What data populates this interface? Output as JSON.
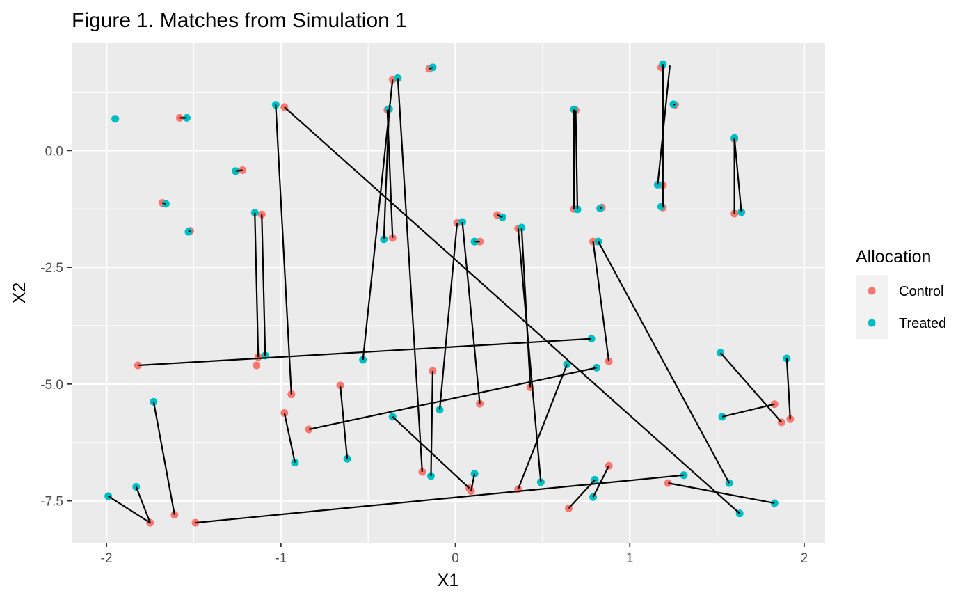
{
  "chart_data": {
    "type": "scatter",
    "title": "Figure 1. Matches from Simulation 1",
    "xlabel": "X1",
    "ylabel": "X2",
    "xlim": [
      -2.2,
      2.12
    ],
    "ylim": [
      -8.4,
      2.3
    ],
    "xticks": [
      -2,
      -1,
      0,
      1,
      2
    ],
    "xtick_labels": [
      "-2",
      "-1",
      "0",
      "1",
      "2"
    ],
    "yticks": [
      -7.5,
      -5.0,
      -2.5,
      0.0
    ],
    "ytick_labels": [
      "-7.5",
      "-5.0",
      "-2.5",
      "0.0"
    ],
    "grid": true,
    "legend": {
      "title": "Allocation",
      "position": "right",
      "entries": [
        {
          "label": "Control",
          "color": "#F8766D"
        },
        {
          "label": "Treated",
          "color": "#00BFC4"
        }
      ]
    },
    "series": [
      {
        "name": "Control",
        "color": "#F8766D",
        "points": [
          [
            -1.95,
            0.68
          ],
          [
            -1.58,
            0.7
          ],
          [
            -1.22,
            -0.42
          ],
          [
            -1.68,
            -1.12
          ],
          [
            -1.52,
            -1.72
          ],
          [
            -0.98,
            0.93
          ],
          [
            -1.11,
            -1.37
          ],
          [
            -1.13,
            -4.42
          ],
          [
            -1.14,
            -4.6
          ],
          [
            -1.82,
            -4.6
          ],
          [
            -0.94,
            -5.22
          ],
          [
            -0.98,
            -5.62
          ],
          [
            -0.84,
            -5.97
          ],
          [
            -0.66,
            -5.03
          ],
          [
            -1.75,
            -7.97
          ],
          [
            -1.61,
            -7.8
          ],
          [
            -1.49,
            -7.97
          ],
          [
            -0.39,
            0.87
          ],
          [
            -0.36,
            -1.87
          ],
          [
            -0.36,
            1.52
          ],
          [
            -0.15,
            1.75
          ],
          [
            -0.13,
            -4.72
          ],
          [
            -0.19,
            -6.88
          ],
          [
            0.01,
            -1.55
          ],
          [
            0.14,
            -5.42
          ],
          [
            0.14,
            -1.95
          ],
          [
            0.24,
            -1.38
          ],
          [
            0.08,
            -7.23
          ],
          [
            0.36,
            -1.67
          ],
          [
            0.43,
            -5.07
          ],
          [
            0.36,
            -7.25
          ],
          [
            0.09,
            -7.29
          ],
          [
            0.69,
            0.86
          ],
          [
            0.68,
            -1.25
          ],
          [
            0.84,
            -1.22
          ],
          [
            0.79,
            -1.95
          ],
          [
            0.88,
            -4.51
          ],
          [
            1.18,
            1.78
          ],
          [
            1.26,
            0.98
          ],
          [
            1.19,
            -0.74
          ],
          [
            1.19,
            -1.22
          ],
          [
            0.88,
            -6.75
          ],
          [
            0.65,
            -7.66
          ],
          [
            1.22,
            -7.12
          ],
          [
            1.6,
            0.25
          ],
          [
            1.6,
            -1.35
          ],
          [
            1.83,
            -5.43
          ],
          [
            1.87,
            -5.82
          ],
          [
            1.92,
            -5.75
          ]
        ]
      },
      {
        "name": "Treated",
        "color": "#00BFC4",
        "points": [
          [
            -1.95,
            0.68
          ],
          [
            -1.54,
            0.7
          ],
          [
            -1.26,
            -0.44
          ],
          [
            -1.66,
            -1.14
          ],
          [
            -1.53,
            -1.74
          ],
          [
            -1.03,
            0.98
          ],
          [
            -1.15,
            -1.33
          ],
          [
            -1.09,
            -4.39
          ],
          [
            -0.92,
            -6.68
          ],
          [
            -1.73,
            -5.38
          ],
          [
            -1.83,
            -7.2
          ],
          [
            -1.99,
            -7.4
          ],
          [
            -0.62,
            -6.6
          ],
          [
            -0.41,
            -1.9
          ],
          [
            -0.38,
            0.89
          ],
          [
            -0.33,
            1.55
          ],
          [
            -0.53,
            -4.48
          ],
          [
            -0.13,
            1.78
          ],
          [
            -0.36,
            -5.7
          ],
          [
            -0.14,
            -6.97
          ],
          [
            -0.09,
            -5.55
          ],
          [
            0.04,
            -1.53
          ],
          [
            0.11,
            -1.95
          ],
          [
            0.27,
            -1.43
          ],
          [
            0.38,
            -1.65
          ],
          [
            0.49,
            -7.1
          ],
          [
            0.11,
            -6.92
          ],
          [
            0.64,
            -4.58
          ],
          [
            0.68,
            0.88
          ],
          [
            0.7,
            -1.26
          ],
          [
            0.83,
            -1.24
          ],
          [
            0.82,
            -1.95
          ],
          [
            0.78,
            -4.03
          ],
          [
            0.81,
            -4.65
          ],
          [
            0.8,
            -7.05
          ],
          [
            0.79,
            -7.42
          ],
          [
            1.19,
            1.85
          ],
          [
            1.25,
            0.99
          ],
          [
            1.16,
            -0.73
          ],
          [
            1.18,
            -1.2
          ],
          [
            1.31,
            -6.95
          ],
          [
            1.6,
            0.27
          ],
          [
            1.64,
            -1.32
          ],
          [
            1.52,
            -4.33
          ],
          [
            1.53,
            -5.7
          ],
          [
            1.57,
            -7.12
          ],
          [
            1.9,
            -4.45
          ],
          [
            1.83,
            -7.55
          ],
          [
            1.63,
            -7.77
          ]
        ]
      }
    ],
    "matches": [
      [
        [
          -1.95,
          0.68
        ],
        [
          -1.95,
          0.68
        ]
      ],
      [
        [
          -1.58,
          0.7
        ],
        [
          -1.54,
          0.7
        ]
      ],
      [
        [
          -1.22,
          -0.42
        ],
        [
          -1.26,
          -0.44
        ]
      ],
      [
        [
          -1.68,
          -1.12
        ],
        [
          -1.66,
          -1.14
        ]
      ],
      [
        [
          -1.52,
          -1.72
        ],
        [
          -1.53,
          -1.74
        ]
      ],
      [
        [
          -1.03,
          0.98
        ],
        [
          -0.94,
          -5.22
        ]
      ],
      [
        [
          -0.98,
          0.93
        ],
        [
          1.63,
          -7.77
        ]
      ],
      [
        [
          -1.15,
          -1.33
        ],
        [
          -1.13,
          -4.42
        ]
      ],
      [
        [
          -1.11,
          -1.37
        ],
        [
          -1.09,
          -4.39
        ]
      ],
      [
        [
          -1.82,
          -4.6
        ],
        [
          0.78,
          -4.03
        ]
      ],
      [
        [
          -0.98,
          -5.62
        ],
        [
          -0.92,
          -6.68
        ]
      ],
      [
        [
          -0.84,
          -5.97
        ],
        [
          0.81,
          -4.65
        ]
      ],
      [
        [
          -0.66,
          -5.03
        ],
        [
          -0.62,
          -6.6
        ]
      ],
      [
        [
          -1.73,
          -5.38
        ],
        [
          -1.61,
          -7.8
        ]
      ],
      [
        [
          -1.83,
          -7.2
        ],
        [
          -1.75,
          -7.97
        ]
      ],
      [
        [
          -1.99,
          -7.4
        ],
        [
          -1.75,
          -7.97
        ]
      ],
      [
        [
          -1.49,
          -7.97
        ],
        [
          1.31,
          -6.95
        ]
      ],
      [
        [
          -0.38,
          0.89
        ],
        [
          -0.41,
          -1.9
        ]
      ],
      [
        [
          -0.39,
          0.87
        ],
        [
          -0.36,
          -1.87
        ]
      ],
      [
        [
          -0.36,
          1.52
        ],
        [
          -0.53,
          -4.48
        ]
      ],
      [
        [
          -0.33,
          1.55
        ],
        [
          -0.19,
          -6.88
        ]
      ],
      [
        [
          -0.15,
          1.75
        ],
        [
          -0.13,
          1.78
        ]
      ],
      [
        [
          -0.13,
          -4.72
        ],
        [
          -0.14,
          -6.97
        ]
      ],
      [
        [
          -0.36,
          -5.7
        ],
        [
          0.08,
          -7.23
        ]
      ],
      [
        [
          0.01,
          -1.55
        ],
        [
          -0.09,
          -5.55
        ]
      ],
      [
        [
          0.04,
          -1.53
        ],
        [
          0.14,
          -5.42
        ]
      ],
      [
        [
          0.11,
          -1.95
        ],
        [
          0.14,
          -1.95
        ]
      ],
      [
        [
          0.24,
          -1.38
        ],
        [
          0.27,
          -1.43
        ]
      ],
      [
        [
          0.36,
          -1.67
        ],
        [
          0.49,
          -7.1
        ]
      ],
      [
        [
          0.38,
          -1.65
        ],
        [
          0.43,
          -5.07
        ]
      ],
      [
        [
          0.11,
          -6.92
        ],
        [
          0.09,
          -7.29
        ]
      ],
      [
        [
          0.36,
          -7.25
        ],
        [
          0.64,
          -4.58
        ]
      ],
      [
        [
          0.68,
          0.88
        ],
        [
          0.68,
          -1.25
        ]
      ],
      [
        [
          0.69,
          0.86
        ],
        [
          0.7,
          -1.26
        ]
      ],
      [
        [
          0.83,
          -1.24
        ],
        [
          0.84,
          -1.22
        ]
      ],
      [
        [
          0.79,
          -1.95
        ],
        [
          0.88,
          -4.51
        ]
      ],
      [
        [
          0.82,
          -1.95
        ],
        [
          1.57,
          -7.12
        ]
      ],
      [
        [
          1.19,
          1.85
        ],
        [
          1.19,
          -1.22
        ]
      ],
      [
        [
          1.23,
          1.82
        ],
        [
          1.16,
          -0.73
        ]
      ],
      [
        [
          1.25,
          0.99
        ],
        [
          1.26,
          0.98
        ]
      ],
      [
        [
          0.88,
          -6.75
        ],
        [
          0.79,
          -7.42
        ]
      ],
      [
        [
          0.65,
          -7.66
        ],
        [
          0.8,
          -7.05
        ]
      ],
      [
        [
          1.22,
          -7.12
        ],
        [
          1.83,
          -7.55
        ]
      ],
      [
        [
          1.6,
          0.25
        ],
        [
          1.6,
          -1.35
        ]
      ],
      [
        [
          1.6,
          0.27
        ],
        [
          1.64,
          -1.32
        ]
      ],
      [
        [
          1.52,
          -4.33
        ],
        [
          1.87,
          -5.82
        ]
      ],
      [
        [
          1.53,
          -5.7
        ],
        [
          1.83,
          -5.43
        ]
      ],
      [
        [
          1.9,
          -4.45
        ],
        [
          1.92,
          -5.75
        ]
      ]
    ]
  }
}
